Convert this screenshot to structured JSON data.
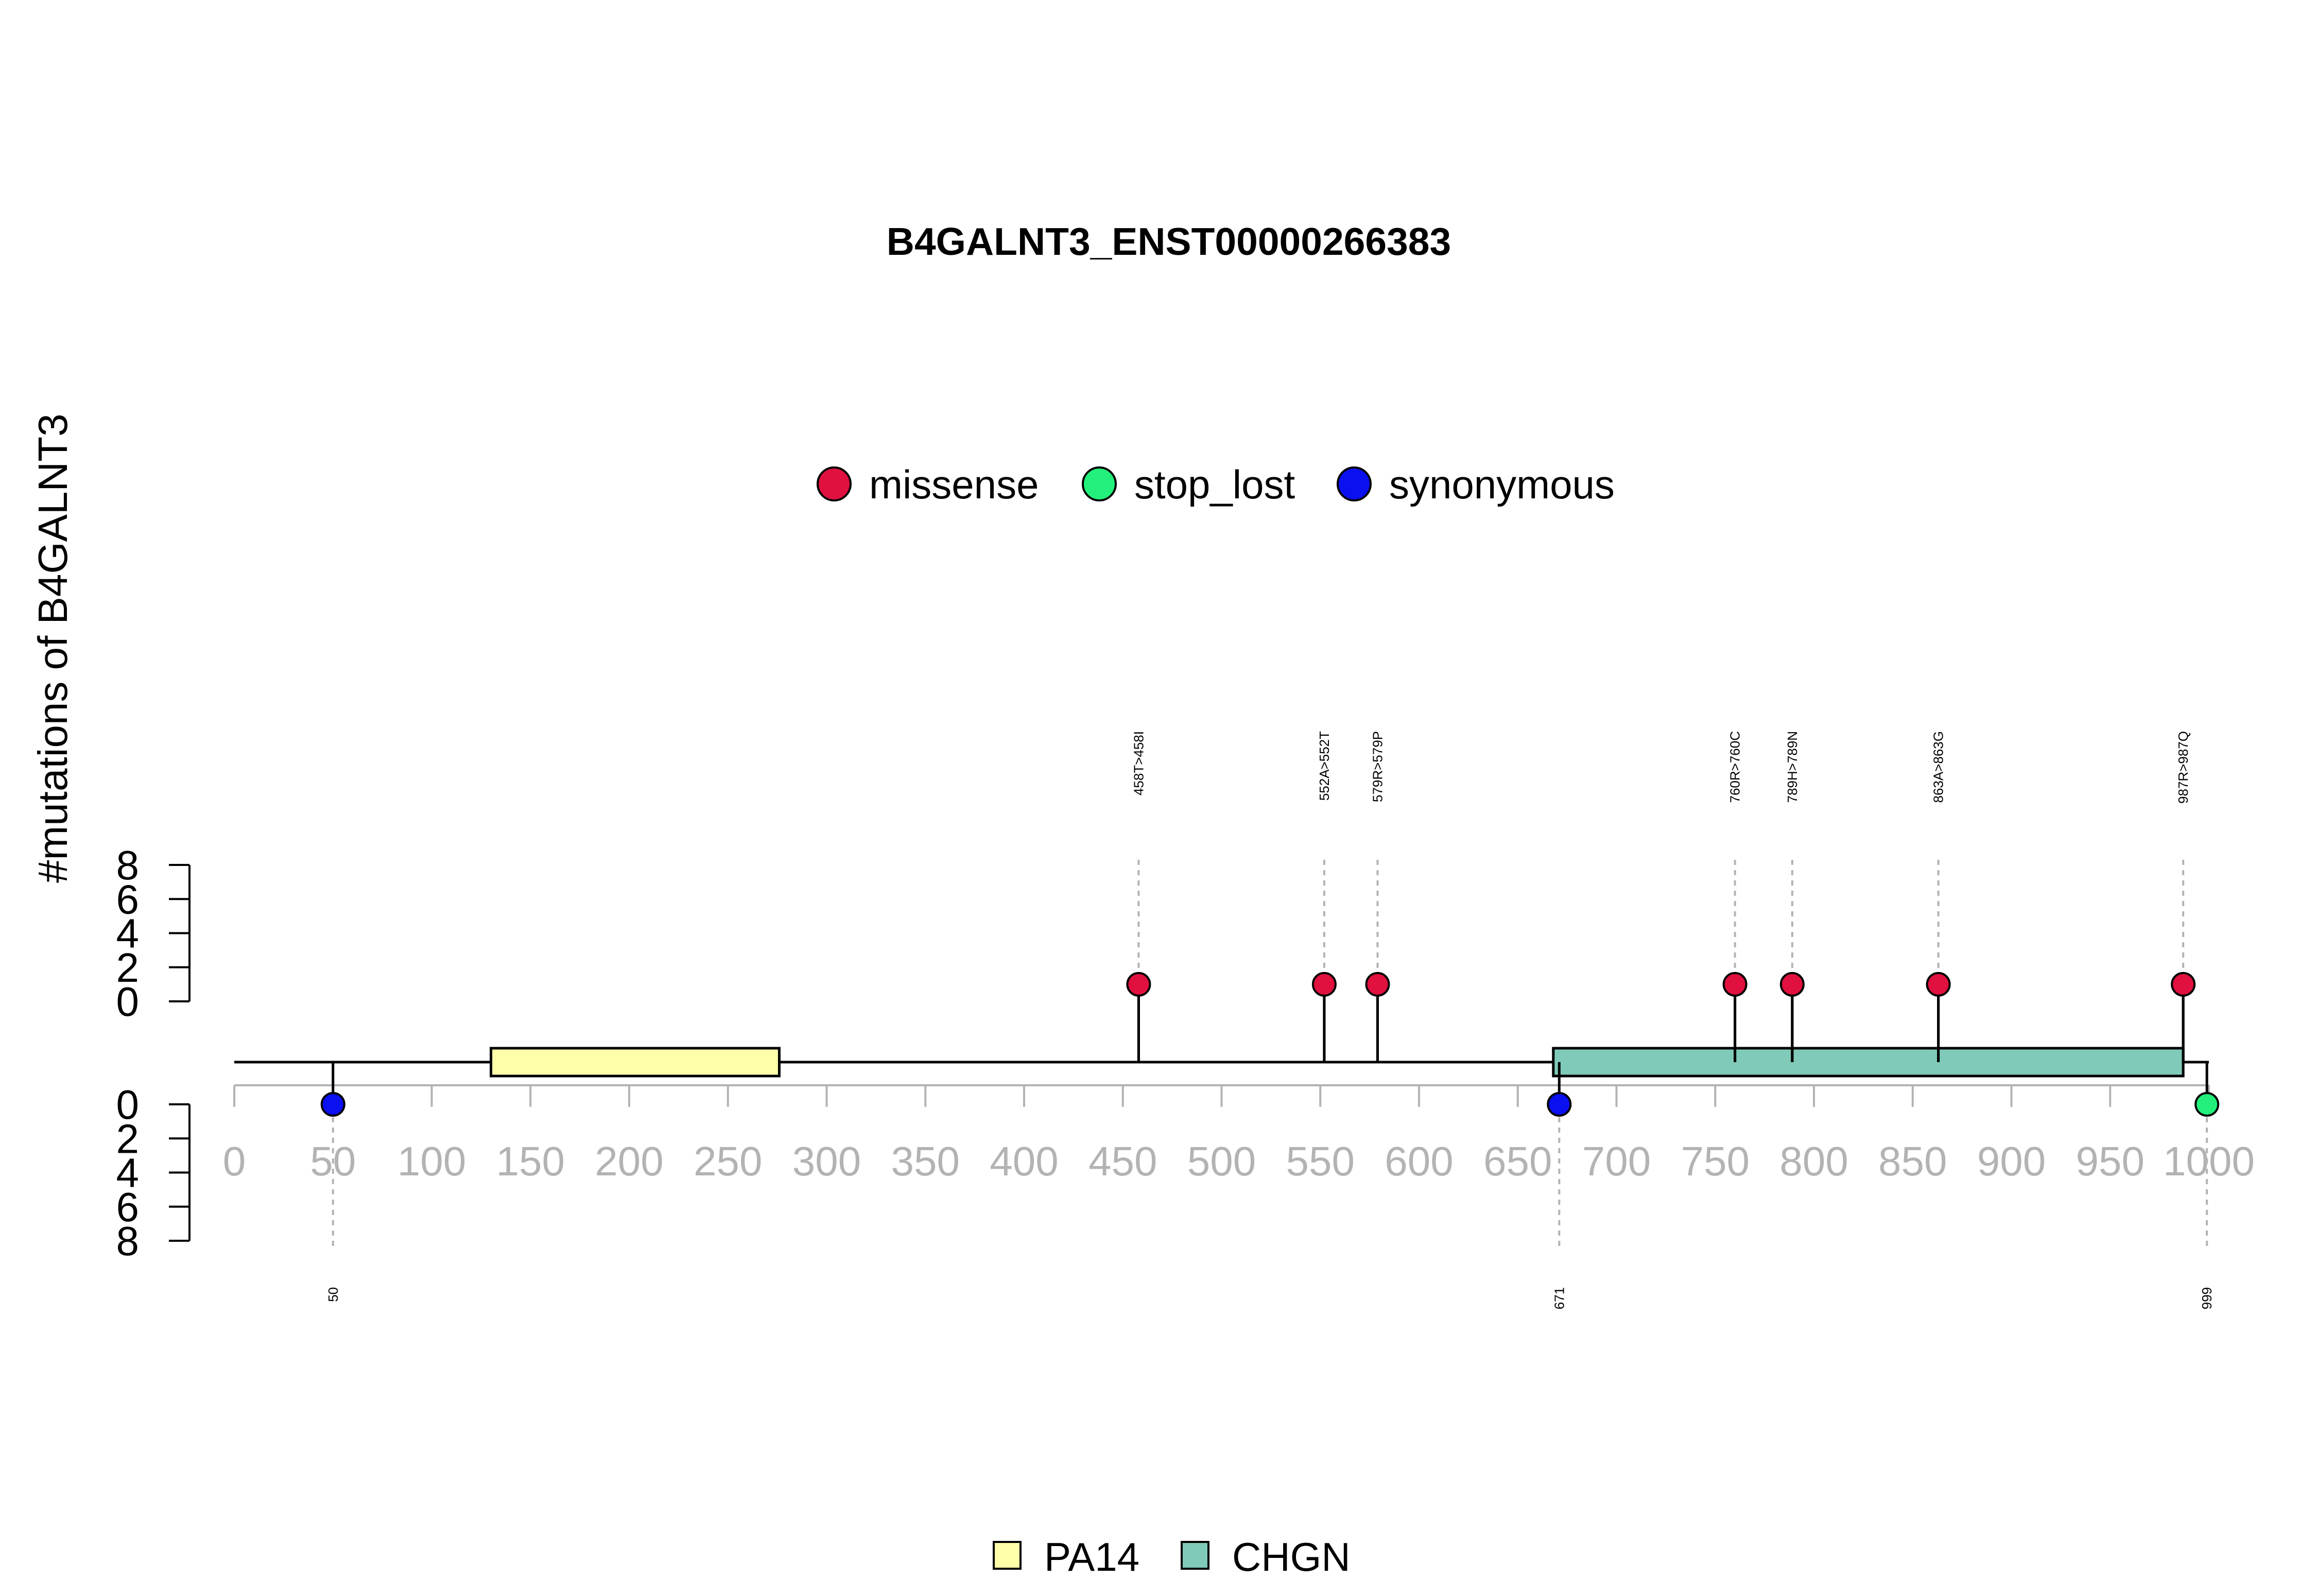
{
  "chart_data": {
    "type": "lollipop",
    "title": "B4GALNT3_ENST00000266383",
    "ylabel": "#mutations of B4GALNT3",
    "protein_length": 1000,
    "x_ticks": [
      0,
      50,
      100,
      150,
      200,
      250,
      300,
      350,
      400,
      450,
      500,
      550,
      600,
      650,
      700,
      750,
      800,
      850,
      900,
      950,
      1000
    ],
    "x_tick_labels": [
      "0",
      "50",
      "100",
      "150",
      "200",
      "250",
      "300",
      "350",
      "400",
      "450",
      "500",
      "550",
      "600",
      "650",
      "700",
      "750",
      "800",
      "850",
      "900",
      "950",
      "1000"
    ],
    "y_ticks_top": [
      "0",
      "2",
      "4",
      "6",
      "8"
    ],
    "y_ticks_bottom": [
      "0",
      "2",
      "4",
      "6",
      "8"
    ],
    "y_range": [
      0,
      8
    ],
    "mutation_legend": [
      {
        "label": "missense",
        "color": "#e0103f"
      },
      {
        "label": "stop_lost",
        "color": "#22f07a"
      },
      {
        "label": "synonymous",
        "color": "#0a10f0"
      }
    ],
    "domain_legend": [
      {
        "label": "PA14",
        "color": "#ffffaa"
      },
      {
        "label": "CHGN",
        "color": "#7fcab8"
      }
    ],
    "domains": [
      {
        "name": "PA14",
        "start": 130,
        "end": 276,
        "color": "#ffffaa"
      },
      {
        "name": "CHGN",
        "start": 668,
        "end": 987,
        "color": "#7fcab8"
      }
    ],
    "mutations_top": [
      {
        "pos": 458,
        "label": "458T>458I",
        "count": 1,
        "type": "missense"
      },
      {
        "pos": 552,
        "label": "552A>552T",
        "count": 1,
        "type": "missense"
      },
      {
        "pos": 579,
        "label": "579R>579P",
        "count": 1,
        "type": "missense"
      },
      {
        "pos": 760,
        "label": "760R>760C",
        "count": 1,
        "type": "missense"
      },
      {
        "pos": 789,
        "label": "789H>789N",
        "count": 1,
        "type": "missense"
      },
      {
        "pos": 863,
        "label": "863A>863G",
        "count": 1,
        "type": "missense"
      },
      {
        "pos": 987,
        "label": "987R>987Q",
        "count": 1,
        "type": "missense"
      }
    ],
    "mutations_bottom": [
      {
        "pos": 50,
        "label": "50",
        "count": 1,
        "type": "synonymous"
      },
      {
        "pos": 671,
        "label": "671",
        "count": 1,
        "type": "synonymous"
      },
      {
        "pos": 999,
        "label": "999",
        "count": 1,
        "type": "stop_lost"
      }
    ]
  }
}
